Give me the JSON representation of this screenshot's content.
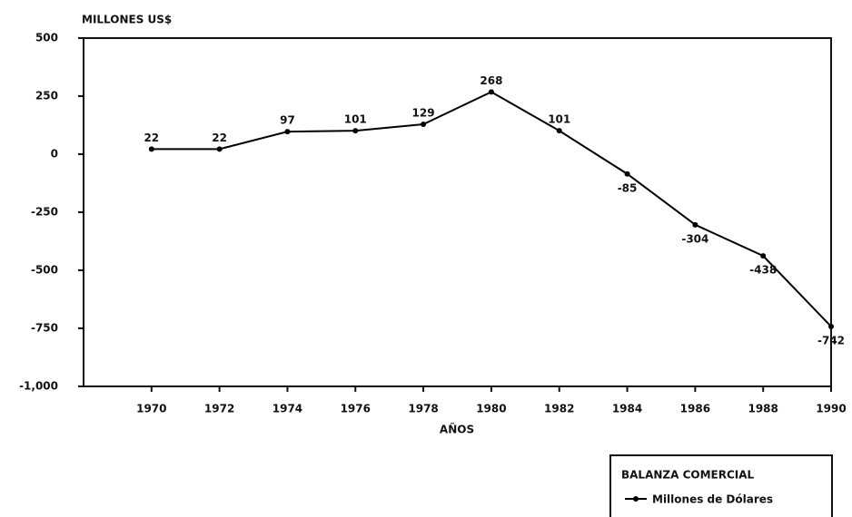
{
  "chart_data": {
    "type": "line",
    "title": "MILLONES US$",
    "x_label": "AÑOS",
    "x": [
      1970,
      1972,
      1974,
      1976,
      1978,
      1980,
      1982,
      1984,
      1986,
      1988,
      1990
    ],
    "xlim": [
      1968,
      1990
    ],
    "xticks": [
      1970,
      1972,
      1974,
      1976,
      1978,
      1980,
      1982,
      1984,
      1986,
      1988,
      1990
    ],
    "ylim": [
      -1000,
      500
    ],
    "yticks": [
      500,
      250,
      0,
      -250,
      -500,
      -750,
      {
        "value": -1000,
        "label": "-1,000"
      }
    ],
    "legend_title": "BALANZA COMERCIAL",
    "series": [
      {
        "name": "Millones de Dólares",
        "color": "#000000",
        "values": [
          22,
          22,
          97,
          101,
          129,
          268,
          101,
          -85,
          -304,
          -438,
          -742
        ]
      }
    ]
  }
}
